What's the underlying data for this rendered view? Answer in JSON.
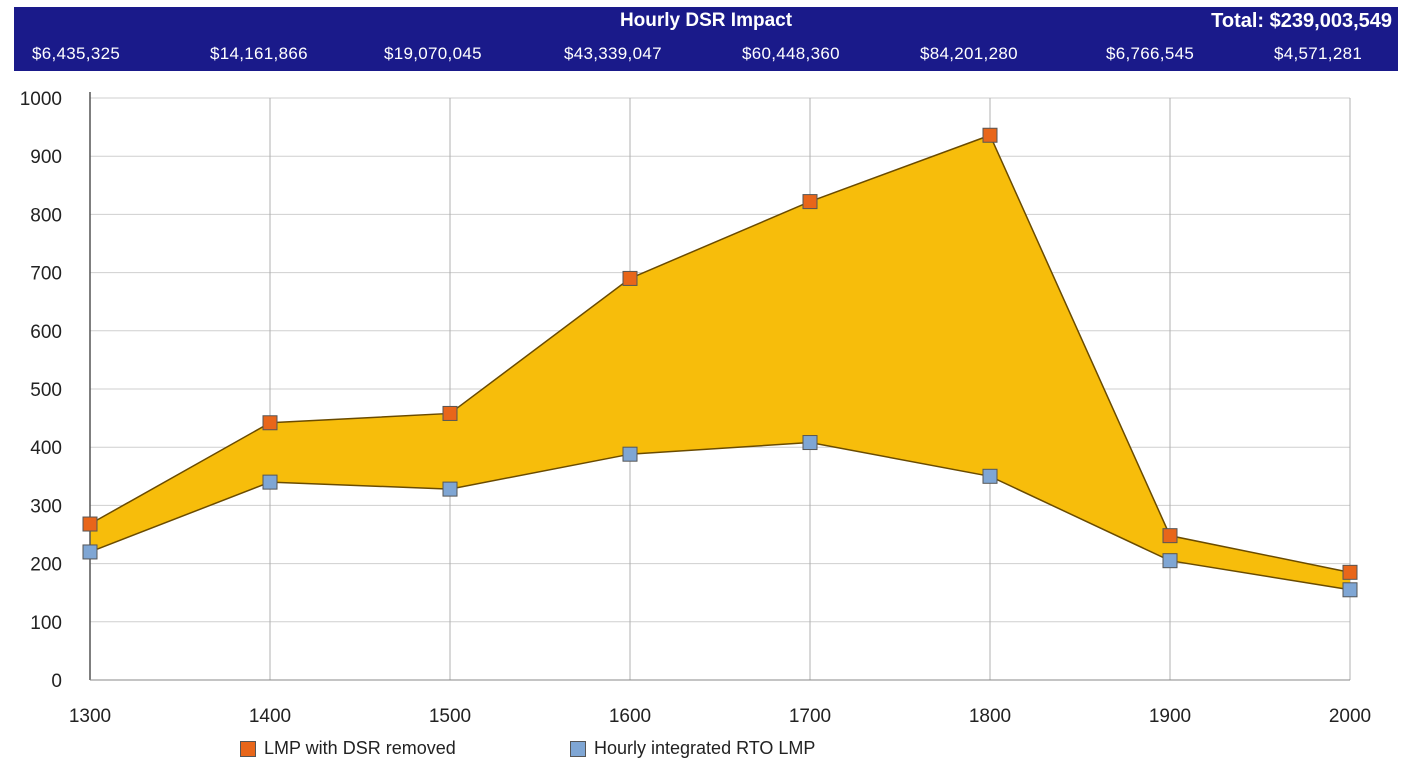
{
  "header": {
    "title": "Hourly DSR Impact",
    "total": "Total: $239,003,549",
    "hourly_values": [
      "$6,435,325",
      "$14,161,866",
      "$19,070,045",
      "$43,339,047",
      "$60,448,360",
      "$84,201,280",
      "$6,766,545",
      "$4,571,281"
    ]
  },
  "colors": {
    "header_bg": "#1a1a8a",
    "fill": "#f7bd0b",
    "series_upper": "#e8661a",
    "series_lower": "#7fa6d4",
    "grid": "#cfcfcf"
  },
  "chart_data": {
    "type": "area",
    "title": "Hourly DSR Impact",
    "x": [
      1300,
      1400,
      1500,
      1600,
      1700,
      1800,
      1900,
      2000
    ],
    "xlim": [
      1300,
      2000
    ],
    "ylim": [
      0,
      1000
    ],
    "yticks": [
      0,
      100,
      200,
      300,
      400,
      500,
      600,
      700,
      800,
      900,
      1000
    ],
    "grid": true,
    "legend_position": "bottom",
    "series": [
      {
        "name": "LMP with DSR removed",
        "values": [
          268,
          442,
          458,
          690,
          822,
          936,
          248,
          185
        ]
      },
      {
        "name": "Hourly integrated RTO LMP",
        "values": [
          220,
          340,
          328,
          388,
          408,
          350,
          205,
          155
        ]
      }
    ]
  }
}
